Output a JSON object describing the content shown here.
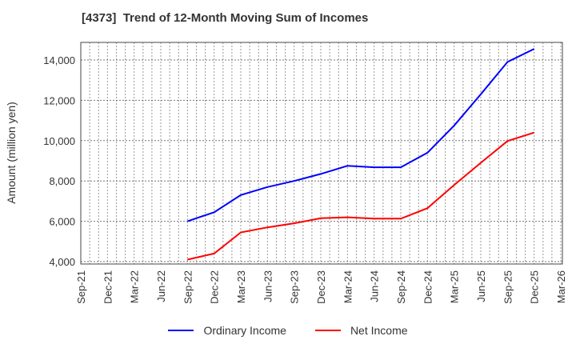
{
  "title": "[4373]  Trend of 12-Month Moving Sum of Incomes",
  "legend": [
    {
      "label": "Ordinary Income",
      "color": "#0000ff"
    },
    {
      "label": "Net Income",
      "color": "#ff0000"
    }
  ],
  "chart_data": {
    "type": "line",
    "title": "[4373]  Trend of 12-Month Moving Sum of Incomes",
    "xlabel": "",
    "ylabel": "Amount (million yen)",
    "ylim": [
      3950,
      14900
    ],
    "yticks": [
      4000,
      6000,
      8000,
      10000,
      12000,
      14000
    ],
    "ytick_labels": [
      "4,000",
      "6,000",
      "8,000",
      "10,000",
      "12,000",
      "14,000"
    ],
    "grid": true,
    "legend_position": "bottom",
    "categories": [
      "Sep-21",
      "Dec-21",
      "Mar-22",
      "Jun-22",
      "Sep-22",
      "Dec-22",
      "Mar-23",
      "Jun-23",
      "Sep-23",
      "Dec-23",
      "Mar-24",
      "Jun-24",
      "Sep-24",
      "Dec-24",
      "Mar-25",
      "Jun-25",
      "Sep-25",
      "Dec-25",
      "Mar-26"
    ],
    "series": [
      {
        "name": "Ordinary Income",
        "color": "#0000ff",
        "values": [
          null,
          null,
          null,
          null,
          6000,
          6450,
          7300,
          7700,
          8000,
          8350,
          8750,
          8680,
          8680,
          9400,
          10750,
          12300,
          13900,
          14550,
          null
        ]
      },
      {
        "name": "Net Income",
        "color": "#ff0000",
        "values": [
          null,
          null,
          null,
          null,
          4100,
          4400,
          5450,
          5700,
          5900,
          6150,
          6200,
          6130,
          6130,
          6650,
          7800,
          8900,
          9980,
          10400,
          null
        ]
      }
    ]
  }
}
